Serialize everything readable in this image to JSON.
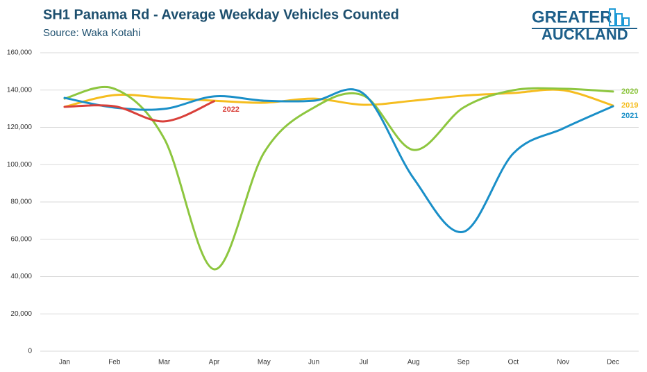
{
  "logo": {
    "line1": "GREATER",
    "line2": "AUCKLAND"
  },
  "chart_data": {
    "type": "line",
    "title": "SH1 Panama Rd - Average Weekday Vehicles Counted",
    "subtitle": "Source: Waka Kotahi",
    "categories": [
      "Jan",
      "Feb",
      "Mar",
      "Apr",
      "May",
      "Jun",
      "Jul",
      "Aug",
      "Sep",
      "Oct",
      "Nov",
      "Dec"
    ],
    "series": [
      {
        "name": "2019",
        "color": "#f5bd1f",
        "values": [
          131000,
          137300,
          135800,
          134300,
          133200,
          135400,
          132100,
          134300,
          137000,
          138400,
          139900,
          131700
        ]
      },
      {
        "name": "2020",
        "color": "#8dc63f",
        "values": [
          135400,
          140700,
          113900,
          43900,
          106400,
          130600,
          137000,
          107900,
          130600,
          139900,
          140700,
          139200
        ]
      },
      {
        "name": "2021",
        "color": "#1a8fc8",
        "values": [
          135800,
          130600,
          129900,
          136600,
          134300,
          134300,
          138000,
          92700,
          64000,
          106000,
          119400,
          131300
        ]
      },
      {
        "name": "2022",
        "color": "#d9403a",
        "values": [
          131000,
          131300,
          123200,
          134000,
          null,
          null,
          null,
          null,
          null,
          null,
          null,
          null
        ]
      }
    ],
    "ylim": [
      0,
      160000
    ],
    "yticks": [
      0,
      {
        "value": 20000,
        "label": "20,000"
      },
      {
        "value": 40000,
        "label": "40,000"
      },
      {
        "value": 60000,
        "label": "60,000"
      },
      {
        "value": 80000,
        "label": "80,000"
      },
      {
        "value": 100000,
        "label": "100,000"
      },
      {
        "value": 120000,
        "label": "120,000"
      },
      {
        "value": 140000,
        "label": "140,000"
      },
      {
        "value": 160000,
        "label": "160,000"
      }
    ],
    "grid": true
  }
}
